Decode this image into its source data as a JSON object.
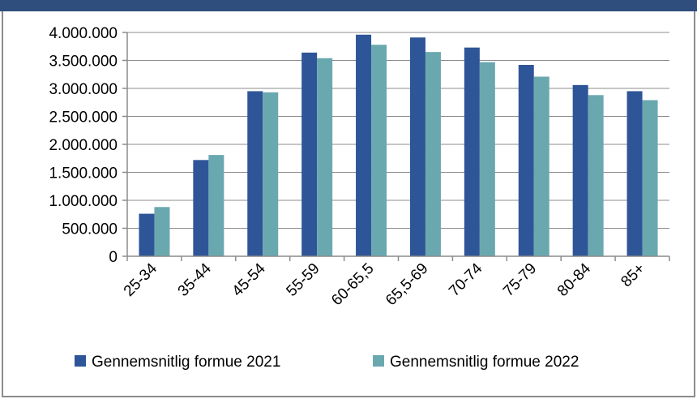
{
  "chart_data": {
    "type": "bar",
    "categories": [
      "25-34",
      "35-44",
      "45-54",
      "55-59",
      "60-65,5",
      "65,5-69",
      "70-74",
      "75-79",
      "80-84",
      "85+"
    ],
    "series": [
      {
        "name": "Gennemsnitlig formue 2021",
        "color": "#2e5597",
        "values": [
          760000,
          1720000,
          2950000,
          3640000,
          3960000,
          3910000,
          3730000,
          3420000,
          3060000,
          2950000
        ]
      },
      {
        "name": "Gennemsnitlig formue 2022",
        "color": "#6aa8b0",
        "values": [
          880000,
          1810000,
          2930000,
          3540000,
          3780000,
          3650000,
          3470000,
          3210000,
          2880000,
          2790000
        ]
      }
    ],
    "ylim": [
      0,
      4000000
    ],
    "yticks": [
      0,
      500000,
      1000000,
      1500000,
      2000000,
      2500000,
      3000000,
      3500000,
      4000000
    ],
    "ytick_labels": [
      "0",
      "500.000",
      "1.000.000",
      "1.500.000",
      "2.000.000",
      "2.500.000",
      "3.000.000",
      "3.500.000",
      "4.000.000"
    ],
    "grid": true,
    "legend_position": "bottom",
    "title": "",
    "xlabel": "",
    "ylabel": ""
  }
}
